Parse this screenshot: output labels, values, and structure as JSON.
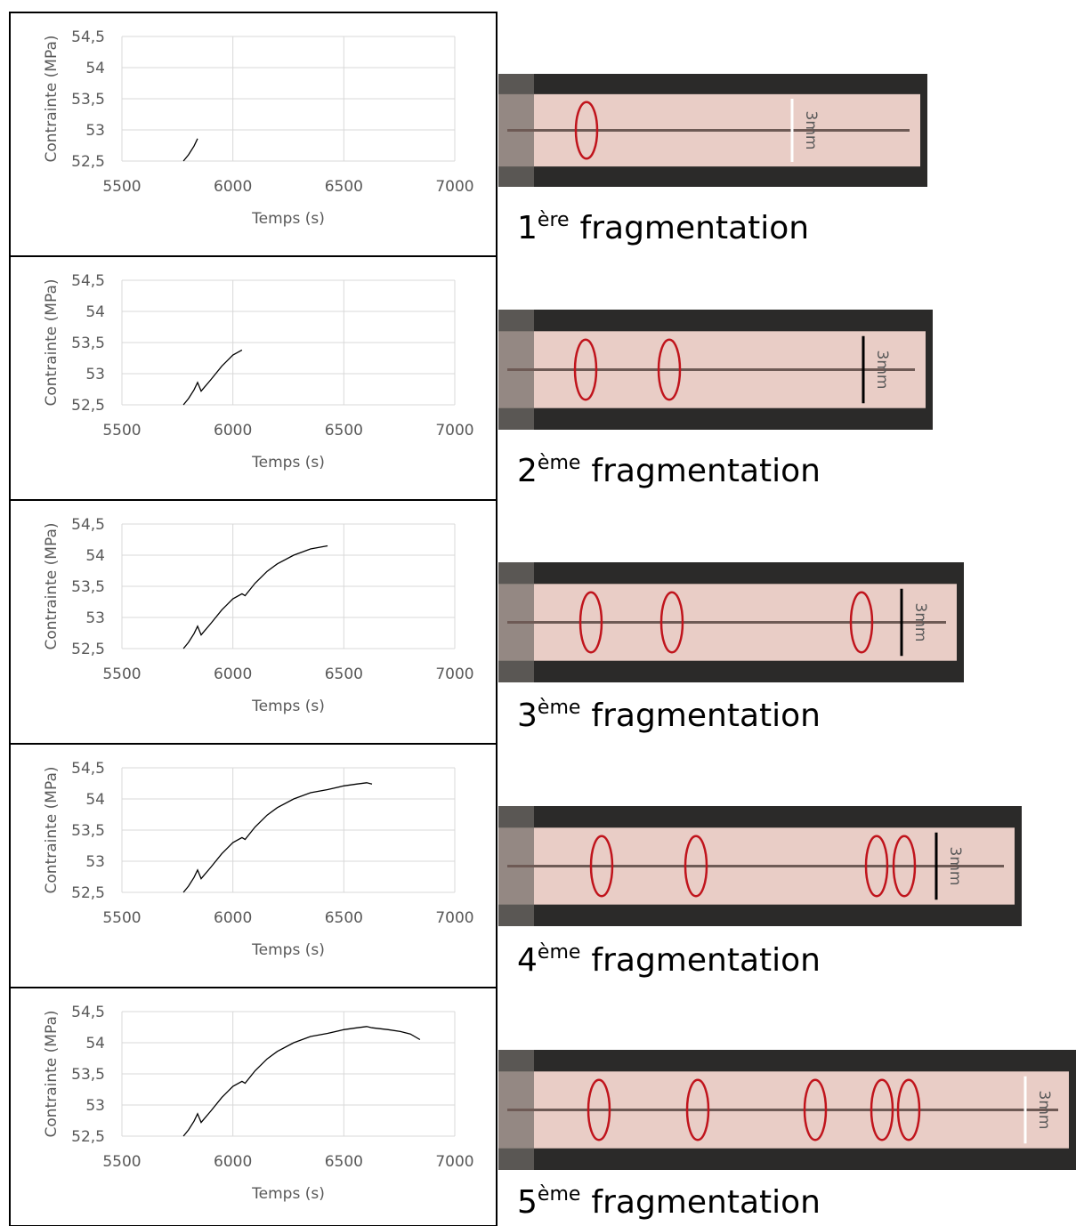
{
  "chart_data": [
    {
      "type": "line",
      "xlabel": "Temps (s)",
      "ylabel": "Contrainte (MPa)",
      "x": [
        5777,
        5800,
        5825,
        5841
      ],
      "values": [
        52.5,
        52.6,
        52.74,
        52.86
      ],
      "color": "#000000",
      "xlim": [
        5500,
        7000
      ],
      "ylim": [
        52.5,
        54.5
      ],
      "xticks": [
        5500,
        6000,
        6500,
        7000
      ],
      "yticks": [
        {
          "value": 52.5,
          "label": "52,5"
        },
        53,
        {
          "value": 53.5,
          "label": "53,5"
        },
        54,
        {
          "value": 54.5,
          "label": "54,5"
        }
      ],
      "grid": true
    },
    {
      "type": "line",
      "xlabel": "Temps (s)",
      "ylabel": "Contrainte (MPa)",
      "x": [
        5777,
        5800,
        5825,
        5841,
        5857,
        5900,
        5950,
        6000,
        6041
      ],
      "values": [
        52.5,
        52.6,
        52.74,
        52.86,
        52.72,
        52.9,
        53.12,
        53.3,
        53.38
      ],
      "color": "#000000",
      "xlim": [
        5500,
        7000
      ],
      "ylim": [
        52.5,
        54.5
      ],
      "xticks": [
        5500,
        6000,
        6500,
        7000
      ],
      "yticks": [
        {
          "value": 52.5,
          "label": "52,5"
        },
        53,
        {
          "value": 53.5,
          "label": "53,5"
        },
        54,
        {
          "value": 54.5,
          "label": "54,5"
        }
      ],
      "grid": true
    },
    {
      "type": "line",
      "xlabel": "Temps (s)",
      "ylabel": "Contrainte (MPa)",
      "x": [
        5777,
        5800,
        5825,
        5841,
        5857,
        5900,
        5950,
        6000,
        6041,
        6055,
        6100,
        6154,
        6200,
        6274,
        6350,
        6427
      ],
      "values": [
        52.5,
        52.6,
        52.74,
        52.86,
        52.72,
        52.9,
        53.12,
        53.3,
        53.38,
        53.35,
        53.55,
        53.74,
        53.86,
        54.0,
        54.1,
        54.15
      ],
      "color": "#000000",
      "xlim": [
        5500,
        7000
      ],
      "ylim": [
        52.5,
        54.5
      ],
      "xticks": [
        5500,
        6000,
        6500,
        7000
      ],
      "yticks": [
        {
          "value": 52.5,
          "label": "52,5"
        },
        53,
        {
          "value": 53.5,
          "label": "53,5"
        },
        54,
        {
          "value": 54.5,
          "label": "54,5"
        }
      ],
      "grid": true
    },
    {
      "type": "line",
      "xlabel": "Temps (s)",
      "ylabel": "Contrainte (MPa)",
      "x": [
        5777,
        5800,
        5825,
        5841,
        5857,
        5900,
        5950,
        6000,
        6041,
        6055,
        6100,
        6154,
        6200,
        6274,
        6350,
        6427,
        6500,
        6560,
        6603,
        6627
      ],
      "values": [
        52.5,
        52.6,
        52.74,
        52.86,
        52.72,
        52.9,
        53.12,
        53.3,
        53.38,
        53.35,
        53.55,
        53.74,
        53.86,
        54.0,
        54.1,
        54.15,
        54.21,
        54.24,
        54.26,
        54.24
      ],
      "color": "#000000",
      "xlim": [
        5500,
        7000
      ],
      "ylim": [
        52.5,
        54.5
      ],
      "xticks": [
        5500,
        6000,
        6500,
        7000
      ],
      "yticks": [
        {
          "value": 52.5,
          "label": "52,5"
        },
        53,
        {
          "value": 53.5,
          "label": "53,5"
        },
        54,
        {
          "value": 54.5,
          "label": "54,5"
        }
      ],
      "grid": true
    },
    {
      "type": "line",
      "xlabel": "Temps (s)",
      "ylabel": "Contrainte (MPa)",
      "x": [
        5777,
        5800,
        5825,
        5841,
        5857,
        5900,
        5950,
        6000,
        6041,
        6055,
        6100,
        6154,
        6200,
        6274,
        6350,
        6427,
        6500,
        6560,
        6603,
        6627,
        6700,
        6755,
        6800,
        6843
      ],
      "values": [
        52.5,
        52.6,
        52.74,
        52.86,
        52.72,
        52.9,
        53.12,
        53.3,
        53.38,
        53.35,
        53.55,
        53.74,
        53.86,
        54.0,
        54.1,
        54.15,
        54.21,
        54.24,
        54.26,
        54.24,
        54.21,
        54.18,
        54.14,
        54.05
      ],
      "color": "#000000",
      "xlim": [
        5500,
        7000
      ],
      "ylim": [
        52.5,
        54.5
      ],
      "xticks": [
        5500,
        6000,
        6500,
        7000
      ],
      "yticks": [
        {
          "value": 52.5,
          "label": "52,5"
        },
        53,
        {
          "value": 53.5,
          "label": "53,5"
        },
        54,
        {
          "value": 54.5,
          "label": "54,5"
        }
      ],
      "grid": true
    }
  ],
  "photos": [
    {
      "scale": "3mm",
      "caption": {
        "number": "1",
        "suffix": "ère",
        "text": "fragmentation"
      }
    },
    {
      "scale": "3mm",
      "caption": {
        "number": "2",
        "suffix": "ème",
        "text": "fragmentation"
      }
    },
    {
      "scale": "3mm",
      "caption": {
        "number": "3",
        "suffix": "ème",
        "text": "fragmentation"
      }
    },
    {
      "scale": "3mm",
      "caption": {
        "number": "4",
        "suffix": "ème",
        "text": "fragmentation"
      }
    },
    {
      "scale": "3mm",
      "caption": {
        "number": "5",
        "suffix": "ème",
        "text": "fragmentation"
      }
    }
  ]
}
